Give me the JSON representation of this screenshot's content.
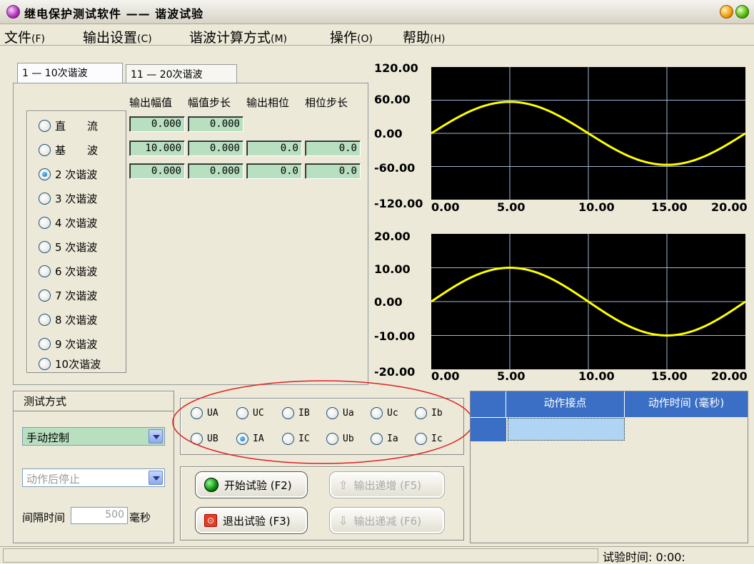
{
  "window": {
    "title": "继电保护测试软件  ——  谐波试验"
  },
  "menu": [
    {
      "label": "文件",
      "accel": "(F)"
    },
    {
      "label": "输出设置",
      "accel": "(C)"
    },
    {
      "label": "谐波计算方式",
      "accel": "(M)"
    },
    {
      "label": "操作",
      "accel": "(O)"
    },
    {
      "label": "帮助",
      "accel": "(H)"
    }
  ],
  "tabs": [
    {
      "label": "1 — 10次谐波"
    },
    {
      "label": "11 — 20次谐波"
    }
  ],
  "columns": [
    "输出幅值",
    "幅值步长",
    "输出相位",
    "相位步长"
  ],
  "harmonics": [
    {
      "label": "直　　流",
      "selected": false
    },
    {
      "label": "基　　波",
      "selected": false
    },
    {
      "label": "2 次谐波",
      "selected": true
    },
    {
      "label": "3 次谐波",
      "selected": false
    },
    {
      "label": "4 次谐波",
      "selected": false
    },
    {
      "label": "5 次谐波",
      "selected": false
    },
    {
      "label": "6 次谐波",
      "selected": false
    },
    {
      "label": "7 次谐波",
      "selected": false
    },
    {
      "label": "8 次谐波",
      "selected": false
    },
    {
      "label": "9 次谐波",
      "selected": false
    },
    {
      "label": "10次谐波",
      "selected": false
    }
  ],
  "values": {
    "dc": {
      "amp": "0.000",
      "amp_step": "0.000"
    },
    "fundamental": {
      "amp": "10.000",
      "amp_step": "0.000",
      "phase": "0.0",
      "phase_step": "0.0"
    },
    "h2": {
      "amp": "0.000",
      "amp_step": "0.000",
      "phase": "0.0",
      "phase_step": "0.0"
    }
  },
  "chart_data": [
    {
      "type": "line",
      "x_ticks": [
        "0.00",
        "5.00",
        "10.00",
        "15.00",
        "20.00"
      ],
      "y_ticks": [
        "120.00",
        "60.00",
        "0.00",
        "-60.00",
        "-120.00"
      ],
      "xlim": [
        0,
        20
      ],
      "ylim": [
        -120,
        120
      ],
      "series": [
        {
          "color": "#ffff00",
          "amplitude": 57,
          "period": 20
        }
      ]
    },
    {
      "type": "line",
      "x_ticks": [
        "0.00",
        "5.00",
        "10.00",
        "15.00",
        "20.00"
      ],
      "y_ticks": [
        "20.00",
        "10.00",
        "0.00",
        "-10.00",
        "-20.00"
      ],
      "xlim": [
        0,
        20
      ],
      "ylim": [
        -20,
        20
      ],
      "series": [
        {
          "color": "#ffff00",
          "amplitude": 10,
          "period": 20
        }
      ]
    }
  ],
  "test_mode": {
    "title": "测试方式",
    "mode": "手动控制",
    "stop": "动作后停止",
    "interval_label": "间隔时间",
    "interval_value": "500",
    "interval_unit": "毫秒"
  },
  "outputs": [
    "UA",
    "UC",
    "IB",
    "Ua",
    "Uc",
    "Ib",
    "UB",
    "IA",
    "IC",
    "Ub",
    "Ia",
    "Ic"
  ],
  "output_selected": "IA",
  "buttons": {
    "start": "开始试验 (F2)",
    "exit": "退出试验 (F3)",
    "inc": "输出递增 (F5)",
    "dec": "输出递减 (F6)"
  },
  "table": {
    "headers": [
      "动作接点",
      "动作时间 (毫秒)"
    ]
  },
  "status": {
    "time_label": "试验时间:",
    "time_value": "0:00:"
  }
}
